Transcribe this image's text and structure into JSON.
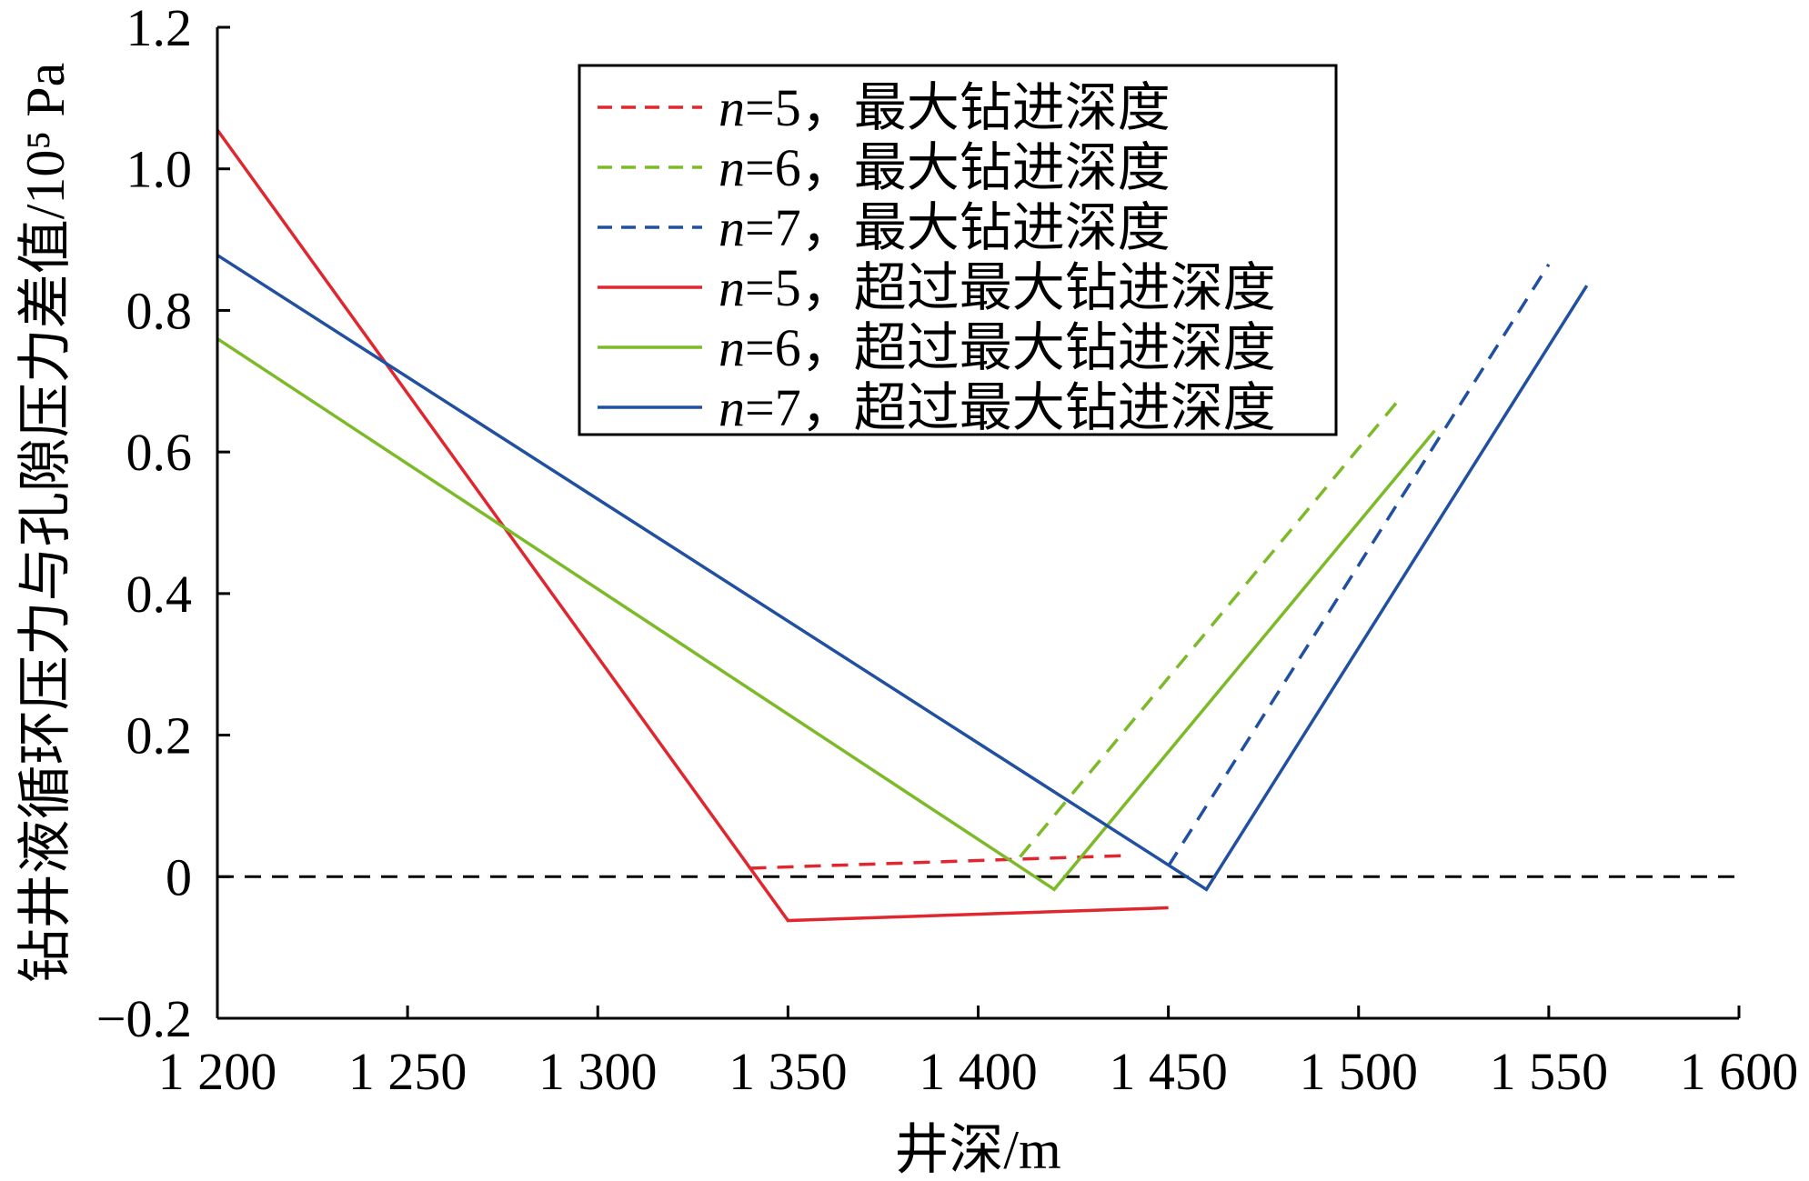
{
  "chart_data": {
    "type": "line",
    "title": "",
    "xlabel": "井深/m",
    "ylabel": "钻井液循环压力与孔隙压力差值/10⁵ Pa",
    "xlim": [
      1200,
      1600
    ],
    "ylim": [
      -0.2,
      1.2
    ],
    "xticks": [
      1200,
      1250,
      1300,
      1350,
      1400,
      1450,
      1500,
      1550,
      1600
    ],
    "xtick_labels": [
      "1 200",
      "1 250",
      "1 300",
      "1 350",
      "1 400",
      "1 450",
      "1 500",
      "1 550",
      "1 600"
    ],
    "yticks": [
      -0.2,
      0,
      0.2,
      0.4,
      0.6,
      0.8,
      1.0,
      1.2
    ],
    "ytick_labels": [
      "−0.2",
      "0",
      "0.2",
      "0.4",
      "0.6",
      "0.8",
      "1.0",
      "1.2"
    ],
    "grid": false,
    "legend_position": "top-center",
    "reference_line": {
      "y": 0,
      "color": "#000000",
      "style": "dashed"
    },
    "series": [
      {
        "name_prefix": "n",
        "name_suffix": "=5，最大钻进深度",
        "color": "#e0262f",
        "style": "dashed",
        "x": [
          1340,
          1440
        ],
        "y": [
          0.012,
          0.03
        ]
      },
      {
        "name_prefix": "n",
        "name_suffix": "=6，最大钻进深度",
        "color": "#7cba29",
        "style": "dashed",
        "x": [
          1411,
          1510
        ],
        "y": [
          0.028,
          0.67
        ]
      },
      {
        "name_prefix": "n",
        "name_suffix": "=7，最大钻进深度",
        "color": "#2150a0",
        "style": "dashed",
        "x": [
          1450,
          1550
        ],
        "y": [
          0.015,
          0.865
        ]
      },
      {
        "name_prefix": "n",
        "name_suffix": "=5，超过最大钻进深度",
        "color": "#e0262f",
        "style": "solid",
        "x": [
          1200,
          1350,
          1450
        ],
        "y": [
          1.055,
          -0.062,
          -0.044
        ]
      },
      {
        "name_prefix": "n",
        "name_suffix": "=6，超过最大钻进深度",
        "color": "#7cba29",
        "style": "solid",
        "x": [
          1200,
          1420,
          1520
        ],
        "y": [
          0.76,
          -0.018,
          0.63
        ]
      },
      {
        "name_prefix": "n",
        "name_suffix": "=7，超过最大钻进深度",
        "color": "#2150a0",
        "style": "solid",
        "x": [
          1200,
          1460,
          1560
        ],
        "y": [
          0.878,
          -0.018,
          0.835
        ]
      }
    ]
  }
}
